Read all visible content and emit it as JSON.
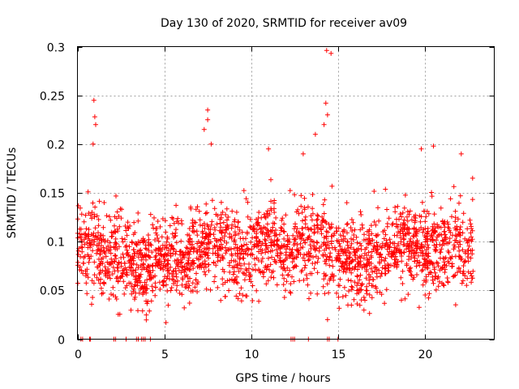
{
  "chart_data": {
    "type": "scatter",
    "title": "Day 130 of 2020, SRMTID for receiver av09",
    "xlabel": "GPS time / hours",
    "ylabel": "SRMTID / TECUs",
    "xlim": [
      0,
      24
    ],
    "ylim": [
      0,
      0.3
    ],
    "xticks": [
      0,
      5,
      10,
      15,
      20
    ],
    "xtick_labels": [
      "0",
      "5",
      "10",
      "15",
      "20"
    ],
    "yticks": [
      0,
      0.05,
      0.1,
      0.15,
      0.2,
      0.25,
      0.3
    ],
    "ytick_labels": [
      "0",
      "0.05",
      "0.1",
      "0.15",
      "0.2",
      "0.25",
      "0.3"
    ],
    "grid": true,
    "marker": "+",
    "color": "#ff0000",
    "series": [
      {
        "name": "SRMTID",
        "baseline_description": "dense cloud of measurements, mostly 0.04-0.15 TECU",
        "profile_x": [
          0,
          1,
          2,
          3,
          4,
          5,
          6,
          7,
          8,
          9,
          10,
          11,
          12,
          13,
          14,
          15,
          16,
          17,
          18,
          19,
          20,
          21,
          22,
          22.8
        ],
        "profile_mean": [
          0.095,
          0.09,
          0.085,
          0.08,
          0.075,
          0.085,
          0.085,
          0.095,
          0.1,
          0.09,
          0.095,
          0.1,
          0.09,
          0.1,
          0.1,
          0.09,
          0.075,
          0.08,
          0.09,
          0.095,
          0.09,
          0.095,
          0.095,
          0.09
        ],
        "peaks": [
          {
            "x": 0.95,
            "y": 0.245
          },
          {
            "x": 1.0,
            "y": 0.228
          },
          {
            "x": 1.05,
            "y": 0.22
          },
          {
            "x": 0.9,
            "y": 0.2
          },
          {
            "x": 7.5,
            "y": 0.235
          },
          {
            "x": 7.5,
            "y": 0.225
          },
          {
            "x": 7.3,
            "y": 0.215
          },
          {
            "x": 7.7,
            "y": 0.2
          },
          {
            "x": 14.35,
            "y": 0.296
          },
          {
            "x": 14.6,
            "y": 0.293
          },
          {
            "x": 14.3,
            "y": 0.242
          },
          {
            "x": 14.4,
            "y": 0.23
          },
          {
            "x": 14.2,
            "y": 0.22
          },
          {
            "x": 13.7,
            "y": 0.21
          },
          {
            "x": 11.0,
            "y": 0.195
          },
          {
            "x": 13.0,
            "y": 0.19
          },
          {
            "x": 20.5,
            "y": 0.198
          },
          {
            "x": 19.8,
            "y": 0.195
          },
          {
            "x": 22.1,
            "y": 0.19
          },
          {
            "x": 14.4,
            "y": 0.02
          },
          {
            "x": 5.1,
            "y": 0.017
          }
        ],
        "zero_values_x": [
          0.2,
          0.3,
          0.7,
          0.75,
          2.1,
          2.2,
          2.8,
          3.4,
          3.5,
          3.7,
          3.8,
          3.9,
          4.2,
          12.3,
          12.4,
          12.5,
          13.3,
          14.4,
          14.5,
          15.0
        ]
      }
    ]
  }
}
